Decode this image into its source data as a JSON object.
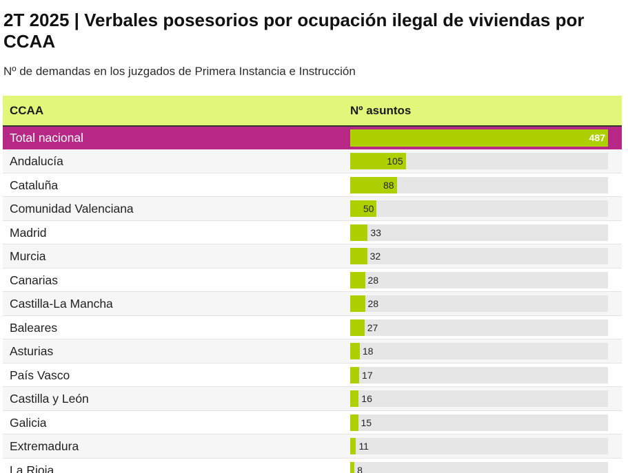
{
  "title": "2T 2025 | Verbales posesorios por ocupación ilegal de viviendas por CCAA",
  "subtitle": "Nº de demandas en los juzgados de Primera Instancia e Instrucción",
  "colors": {
    "header_bg": "#e2f77a",
    "total_row": "#b72785",
    "bar": "#afd000",
    "track": "#e6e6e6"
  },
  "chart_data": {
    "type": "bar",
    "columns": [
      "CCAA",
      "Nº asuntos"
    ],
    "categories": [
      "Total nacional",
      "Andalucía",
      "Cataluña",
      "Comunidad Valenciana",
      "Madrid",
      "Murcia",
      "Canarias",
      "Castilla-La Mancha",
      "Baleares",
      "Asturias",
      "País Vasco",
      "Castilla y León",
      "Galicia",
      "Extremadura",
      "La Rioja"
    ],
    "values": [
      487,
      105,
      88,
      50,
      33,
      32,
      28,
      28,
      27,
      18,
      17,
      16,
      15,
      11,
      8
    ],
    "max": 487
  }
}
